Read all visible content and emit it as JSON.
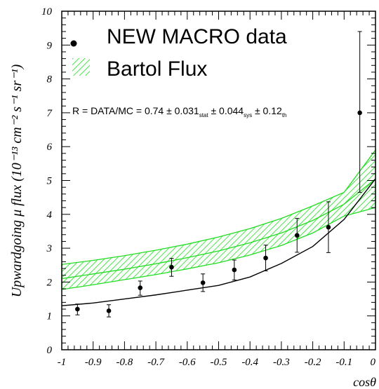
{
  "chart_data": {
    "type": "line",
    "xlabel": "cosθ",
    "ylabel": "Upwardgoing μ flux (10⁻¹³ cm⁻² s⁻¹ sr⁻¹)",
    "xlim": [
      -1,
      0
    ],
    "ylim": [
      0,
      10
    ],
    "x_ticks": [
      "-1",
      "-0.9",
      "-0.8",
      "-0.7",
      "-0.6",
      "-0.5",
      "-0.4",
      "-0.3",
      "-0.2",
      "-0.1",
      "0"
    ],
    "y_ticks": [
      "0",
      "1",
      "2",
      "3",
      "4",
      "5",
      "6",
      "7",
      "8",
      "9",
      "10"
    ],
    "grid": false,
    "legend_position": "top-left",
    "legend": {
      "data_label": "NEW MACRO data",
      "band_label": "Bartol Flux"
    },
    "annotation": {
      "prefix": "R = DATA/MC = 0.74 ± 0.031",
      "stat": "stat",
      "mid": " ± 0.044",
      "sys": "sys",
      "mid2": " ±  0.12",
      "th": "th"
    },
    "data_points": {
      "name": "NEW MACRO data",
      "x": [
        -0.95,
        -0.85,
        -0.75,
        -0.65,
        -0.55,
        -0.45,
        -0.35,
        -0.25,
        -0.15,
        -0.05
      ],
      "y": [
        1.2,
        1.15,
        1.83,
        2.44,
        1.98,
        2.36,
        2.71,
        3.38,
        3.62,
        7.0
      ],
      "err_low": [
        0.17,
        0.18,
        0.22,
        0.27,
        0.26,
        0.3,
        0.38,
        0.5,
        0.75,
        2.35
      ],
      "err_high": [
        0.15,
        0.18,
        0.2,
        0.26,
        0.26,
        0.29,
        0.38,
        0.5,
        0.75,
        2.4
      ]
    },
    "band": {
      "name": "Bartol Flux",
      "x": [
        -1,
        -0.9,
        -0.8,
        -0.7,
        -0.6,
        -0.5,
        -0.4,
        -0.3,
        -0.2,
        -0.1,
        0
      ],
      "lower": [
        1.78,
        1.92,
        2.07,
        2.22,
        2.39,
        2.57,
        2.8,
        3.08,
        3.45,
        3.95,
        4.2
      ],
      "upper": [
        2.52,
        2.64,
        2.78,
        2.94,
        3.12,
        3.33,
        3.58,
        3.88,
        4.25,
        4.65,
        5.9
      ],
      "center": [
        2.1,
        2.24,
        2.38,
        2.54,
        2.72,
        2.92,
        3.16,
        3.45,
        3.82,
        4.3,
        5.05
      ]
    },
    "curve": {
      "x": [
        -1,
        -0.9,
        -0.8,
        -0.7,
        -0.6,
        -0.5,
        -0.4,
        -0.3,
        -0.2,
        -0.1,
        0
      ],
      "y": [
        1.3,
        1.38,
        1.5,
        1.62,
        1.76,
        1.9,
        2.15,
        2.55,
        3.05,
        3.85,
        5.05
      ]
    },
    "colors": {
      "band_fill": "#ffffff",
      "band_stroke": "#22dd22",
      "hatch": "#22dd22",
      "curve": "#000000",
      "points": "#000000"
    }
  }
}
